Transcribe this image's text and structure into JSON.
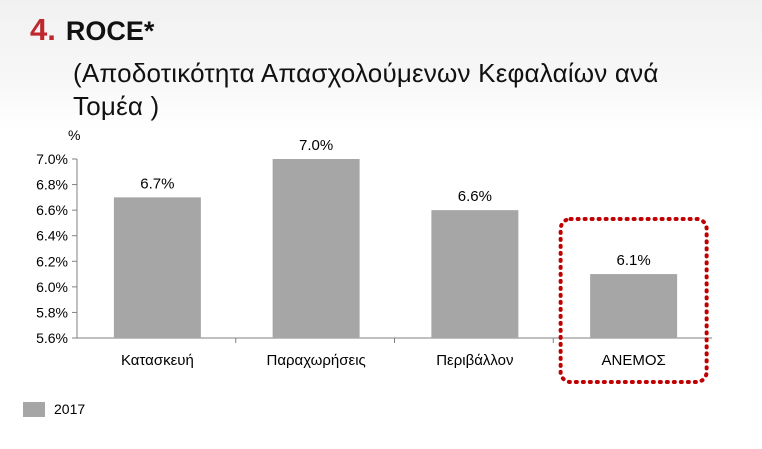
{
  "header": {
    "number": "4.",
    "title": "ROCE*",
    "subtitle": "(Αποδοτικότητα Απασχολούμενων Κεφαλαίων ανά Τομέα )"
  },
  "chart_data": {
    "type": "bar",
    "unit_label": "%",
    "categories": [
      "Κατασκευή",
      "Παραχωρήσεις",
      "Περιβάλλον",
      "ΑΝΕΜΟΣ"
    ],
    "series": [
      {
        "name": "2017",
        "values": [
          6.7,
          7.0,
          6.6,
          6.1
        ],
        "data_labels": [
          "6.7%",
          "7.0%",
          "6.6%",
          "6.1%"
        ],
        "color": "#a6a6a6"
      }
    ],
    "ylim": [
      5.6,
      7.0
    ],
    "y_ticks": [
      "7.0%",
      "6.8%",
      "6.6%",
      "6.4%",
      "6.2%",
      "6.0%",
      "5.8%",
      "5.6%"
    ],
    "y_tick_values": [
      7.0,
      6.8,
      6.6,
      6.4,
      6.2,
      6.0,
      5.8,
      5.6
    ],
    "grid": false,
    "legend_position": "bottom-left",
    "highlight_category": "ΑΝΕΜΟΣ",
    "highlight_color": "#c00000"
  }
}
